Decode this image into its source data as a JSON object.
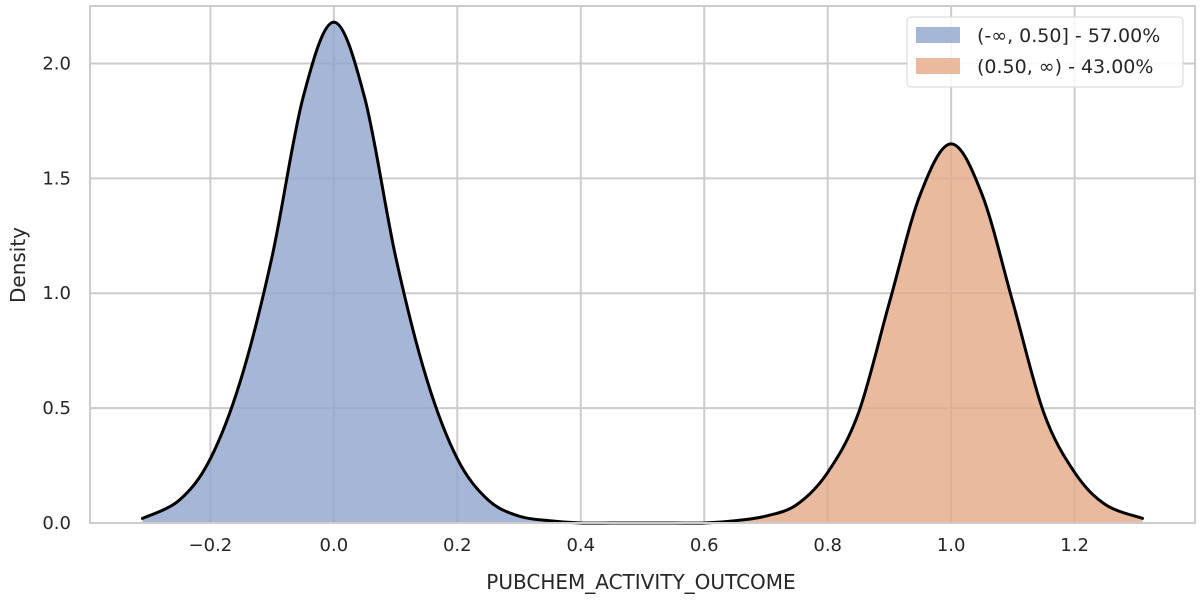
{
  "chart_data": {
    "type": "area",
    "title": "",
    "xlabel": "PUBCHEM_ACTIVITY_OUTCOME",
    "ylabel": "Density",
    "xlim": [
      -0.395,
      1.395
    ],
    "ylim": [
      0,
      2.25
    ],
    "x_ticks": [
      -0.2,
      0.0,
      0.2,
      0.4,
      0.6,
      0.8,
      1.0,
      1.2
    ],
    "x_tick_labels": [
      "−0.2",
      "0.0",
      "0.2",
      "0.4",
      "0.6",
      "0.8",
      "1.0",
      "1.2"
    ],
    "y_ticks": [
      0.0,
      0.5,
      1.0,
      1.5,
      2.0
    ],
    "y_tick_labels": [
      "0.0",
      "0.5",
      "1.0",
      "1.5",
      "2.0"
    ],
    "grid": true,
    "legend_position": "top-right",
    "threshold": 0.5,
    "curve_color": "#000000",
    "series": [
      {
        "name": "(-∞, 0.50] - 57.00%",
        "color": "#8ea4cc",
        "x": [
          -0.31,
          -0.25,
          -0.2,
          -0.15,
          -0.1,
          -0.05,
          0.0,
          0.05,
          0.1,
          0.15,
          0.2,
          0.25,
          0.3,
          0.35,
          0.4,
          0.45,
          0.5
        ],
        "y": [
          0.02,
          0.1,
          0.28,
          0.63,
          1.16,
          1.85,
          2.18,
          1.85,
          1.16,
          0.63,
          0.28,
          0.1,
          0.03,
          0.01,
          0.0,
          0.0,
          0.0
        ]
      },
      {
        "name": "(0.50, ∞) - 43.00%",
        "color": "#e5a987",
        "x": [
          0.5,
          0.55,
          0.6,
          0.65,
          0.7,
          0.75,
          0.8,
          0.85,
          0.9,
          0.95,
          1.0,
          1.05,
          1.1,
          1.15,
          1.2,
          1.25,
          1.31
        ],
        "y": [
          0.0,
          0.0,
          0.0,
          0.01,
          0.03,
          0.08,
          0.22,
          0.48,
          0.96,
          1.43,
          1.65,
          1.43,
          0.96,
          0.48,
          0.22,
          0.08,
          0.02
        ]
      }
    ]
  }
}
